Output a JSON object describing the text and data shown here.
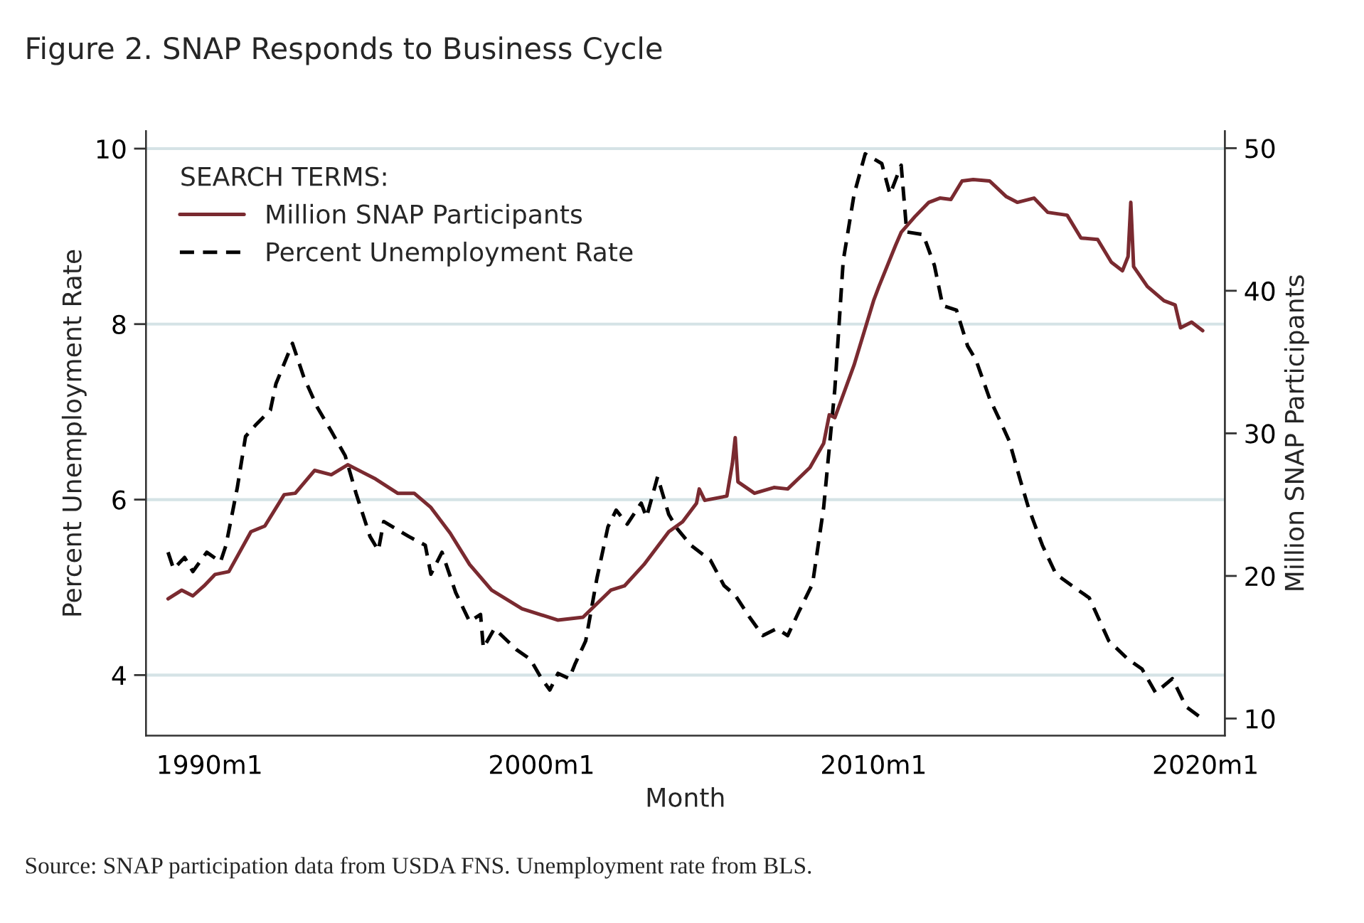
{
  "chart_data": {
    "type": "line",
    "title": "Figure 2. SNAP Responds to Business Cycle",
    "xlabel": "Month",
    "ylabel": "Percent Unemployment Rate",
    "y2label": "Million SNAP Participants",
    "legend_title": "SEARCH TERMS:",
    "legend": "top left",
    "grid": "y",
    "annotations": [
      "Source: SNAP participation data from USDA FNS. Unemployment rate from BLS."
    ],
    "xlim": [
      "1988-02",
      "2020-08"
    ],
    "xticks": [
      {
        "value": "1990-01",
        "label": "1990m1"
      },
      {
        "value": "2000-01",
        "label": "2000m1"
      },
      {
        "value": "2010-01",
        "label": "2010m1"
      },
      {
        "value": "2020-01",
        "label": "2020m1"
      }
    ],
    "ylim": [
      3.31,
      10.2
    ],
    "yticks": [
      4,
      6,
      8,
      10
    ],
    "y2lim": [
      8.8,
      51.2
    ],
    "y2ticks": [
      10,
      20,
      30,
      40,
      50
    ],
    "series": [
      {
        "name": "Million SNAP Participants",
        "color": "#7a2a30",
        "axis": "y2",
        "line_style": "solid",
        "x": [
          "1988-10",
          "1989-03",
          "1989-07",
          "1989-11",
          "1990-03",
          "1990-08",
          "1991-04",
          "1991-09",
          "1992-04",
          "1992-08",
          "1993-03",
          "1993-09",
          "1994-03",
          "1995-01",
          "1995-09",
          "1996-03",
          "1996-09",
          "1997-04",
          "1997-11",
          "1998-07",
          "1999-06",
          "2000-07",
          "2001-04",
          "2002-02",
          "2002-07",
          "2003-02",
          "2003-11",
          "2004-04",
          "2004-09",
          "2004-10",
          "2004-12",
          "2005-08",
          "2005-10",
          "2005-11",
          "2005-12",
          "2006-06",
          "2007-01",
          "2007-06",
          "2008-02",
          "2008-07",
          "2008-09",
          "2008-11",
          "2009-06",
          "2010-01",
          "2010-03",
          "2010-09",
          "2010-11",
          "2011-04",
          "2011-09",
          "2012-01",
          "2012-05",
          "2012-09",
          "2013-01",
          "2013-07",
          "2014-01",
          "2014-05",
          "2014-11",
          "2015-04",
          "2015-11",
          "2016-04",
          "2016-10",
          "2017-03",
          "2017-07",
          "2017-09",
          "2017-10",
          "2017-11",
          "2018-04",
          "2018-10",
          "2019-02",
          "2019-04",
          "2019-08",
          "2019-12"
        ],
        "values": [
          18.4,
          19.0,
          18.6,
          19.3,
          20.1,
          20.3,
          23.1,
          23.5,
          25.7,
          25.8,
          27.4,
          27.1,
          27.8,
          26.8,
          25.8,
          25.8,
          24.8,
          23.0,
          20.8,
          19.0,
          17.7,
          16.9,
          17.1,
          19.0,
          19.3,
          20.8,
          23.1,
          23.8,
          25.1,
          26.1,
          25.3,
          25.6,
          27.9,
          29.7,
          26.6,
          25.8,
          26.2,
          26.1,
          27.6,
          29.3,
          31.3,
          31.1,
          34.8,
          39.3,
          40.3,
          43.2,
          44.1,
          45.2,
          46.2,
          46.5,
          46.4,
          47.7,
          47.8,
          47.7,
          46.6,
          46.2,
          46.5,
          45.5,
          45.3,
          43.7,
          43.6,
          42.0,
          41.4,
          42.4,
          46.2,
          41.7,
          40.3,
          39.3,
          39.0,
          37.4,
          37.8,
          37.2
        ]
      },
      {
        "name": "Percent Unemployment Rate",
        "color": "#000000",
        "axis": "y",
        "line_style": "dashed",
        "x": [
          "1988-10",
          "1988-12",
          "1989-04",
          "1989-07",
          "1989-12",
          "1990-05",
          "1990-07",
          "1990-11",
          "1991-02",
          "1991-06",
          "1991-11",
          "1992-01",
          "1992-07",
          "1992-11",
          "1993-04",
          "1993-09",
          "1994-02",
          "1994-06",
          "1994-11",
          "1995-02",
          "1995-04",
          "1996-01",
          "1996-07",
          "1996-09",
          "1997-01",
          "1997-06",
          "1997-11",
          "1998-03",
          "1998-04",
          "1998-08",
          "1999-04",
          "1999-09",
          "2000-01",
          "2000-04",
          "2000-07",
          "2000-11",
          "2001-01",
          "2001-05",
          "2001-09",
          "2002-01",
          "2002-04",
          "2002-08",
          "2003-01",
          "2003-03",
          "2003-07",
          "2003-11",
          "2004-02",
          "2004-07",
          "2005-02",
          "2005-07",
          "2005-11",
          "2006-04",
          "2006-09",
          "2007-02",
          "2007-06",
          "2007-10",
          "2008-03",
          "2008-07",
          "2008-11",
          "2009-02",
          "2009-06",
          "2009-10",
          "2010-04",
          "2010-07",
          "2010-11",
          "2011-01",
          "2011-07",
          "2011-11",
          "2012-02",
          "2012-07",
          "2012-11",
          "2013-02",
          "2013-07",
          "2013-11",
          "2014-02",
          "2014-06",
          "2014-09",
          "2015-02",
          "2015-07",
          "2016-02",
          "2016-07",
          "2017-02",
          "2017-09",
          "2018-02",
          "2018-07",
          "2019-01",
          "2019-06",
          "2019-12"
        ],
        "values": [
          5.4,
          5.21,
          5.34,
          5.18,
          5.4,
          5.29,
          5.48,
          6.13,
          6.72,
          6.86,
          7.02,
          7.32,
          7.78,
          7.4,
          7.05,
          6.78,
          6.5,
          6.07,
          5.58,
          5.42,
          5.75,
          5.58,
          5.48,
          5.15,
          5.4,
          4.94,
          4.61,
          4.69,
          4.31,
          4.53,
          4.29,
          4.18,
          3.96,
          3.83,
          4.02,
          3.96,
          4.12,
          4.39,
          5.1,
          5.69,
          5.88,
          5.72,
          5.96,
          5.8,
          6.26,
          5.83,
          5.67,
          5.48,
          5.31,
          5.02,
          4.91,
          4.67,
          4.45,
          4.53,
          4.45,
          4.72,
          5.04,
          5.91,
          7.26,
          8.72,
          9.48,
          9.94,
          9.83,
          9.48,
          9.81,
          9.05,
          9.02,
          8.67,
          8.21,
          8.16,
          7.75,
          7.59,
          7.15,
          6.88,
          6.67,
          6.23,
          5.91,
          5.48,
          5.15,
          4.99,
          4.88,
          4.39,
          4.18,
          4.07,
          3.8,
          3.96,
          3.64,
          3.5
        ]
      }
    ]
  }
}
